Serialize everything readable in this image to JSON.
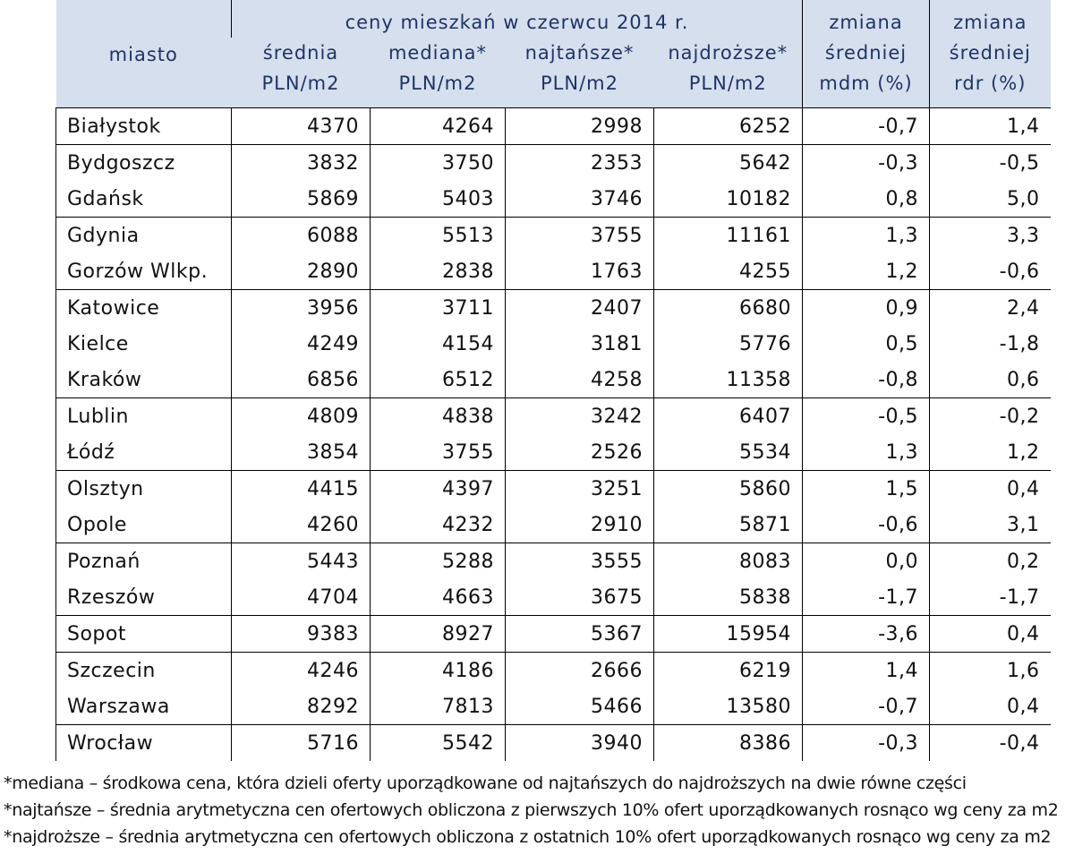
{
  "header": {
    "city_label": "miasto",
    "group_label": "ceny mieszkań w czerwcu 2014 r.",
    "columns": [
      {
        "line1": "średnia",
        "line2": "PLN/m2"
      },
      {
        "line1": "mediana*",
        "line2": "PLN/m2"
      },
      {
        "line1": "najtańsze*",
        "line2": "PLN/m2"
      },
      {
        "line1": "najdroższe*",
        "line2": "PLN/m2"
      }
    ],
    "change_mdm": {
      "line1": "zmiana",
      "line2": "średniej",
      "line3": "mdm (%)"
    },
    "change_rdr": {
      "line1": "zmiana",
      "line2": "średniej",
      "line3": "rdr (%)"
    }
  },
  "rows": [
    {
      "city": "Białystok",
      "srednia": "4370",
      "mediana": "4264",
      "najtansze": "2998",
      "najdrozsze": "6252",
      "mdm": "-0,7",
      "rdr": "1,4"
    },
    {
      "city": "Bydgoszcz",
      "srednia": "3832",
      "mediana": "3750",
      "najtansze": "2353",
      "najdrozsze": "5642",
      "mdm": "-0,3",
      "rdr": "-0,5"
    },
    {
      "city": "Gdańsk",
      "srednia": "5869",
      "mediana": "5403",
      "najtansze": "3746",
      "najdrozsze": "10182",
      "mdm": "0,8",
      "rdr": "5,0"
    },
    {
      "city": "Gdynia",
      "srednia": "6088",
      "mediana": "5513",
      "najtansze": "3755",
      "najdrozsze": "11161",
      "mdm": "1,3",
      "rdr": "3,3"
    },
    {
      "city": "Gorzów Wlkp.",
      "srednia": "2890",
      "mediana": "2838",
      "najtansze": "1763",
      "najdrozsze": "4255",
      "mdm": "1,2",
      "rdr": "-0,6"
    },
    {
      "city": "Katowice",
      "srednia": "3956",
      "mediana": "3711",
      "najtansze": "2407",
      "najdrozsze": "6680",
      "mdm": "0,9",
      "rdr": "2,4"
    },
    {
      "city": "Kielce",
      "srednia": "4249",
      "mediana": "4154",
      "najtansze": "3181",
      "najdrozsze": "5776",
      "mdm": "0,5",
      "rdr": "-1,8"
    },
    {
      "city": "Kraków",
      "srednia": "6856",
      "mediana": "6512",
      "najtansze": "4258",
      "najdrozsze": "11358",
      "mdm": "-0,8",
      "rdr": "0,6"
    },
    {
      "city": "Lublin",
      "srednia": "4809",
      "mediana": "4838",
      "najtansze": "3242",
      "najdrozsze": "6407",
      "mdm": "-0,5",
      "rdr": "-0,2"
    },
    {
      "city": "Łódź",
      "srednia": "3854",
      "mediana": "3755",
      "najtansze": "2526",
      "najdrozsze": "5534",
      "mdm": "1,3",
      "rdr": "1,2"
    },
    {
      "city": "Olsztyn",
      "srednia": "4415",
      "mediana": "4397",
      "najtansze": "3251",
      "najdrozsze": "5860",
      "mdm": "1,5",
      "rdr": "0,4"
    },
    {
      "city": "Opole",
      "srednia": "4260",
      "mediana": "4232",
      "najtansze": "2910",
      "najdrozsze": "5871",
      "mdm": "-0,6",
      "rdr": "3,1"
    },
    {
      "city": "Poznań",
      "srednia": "5443",
      "mediana": "5288",
      "najtansze": "3555",
      "najdrozsze": "8083",
      "mdm": "0,0",
      "rdr": "0,2"
    },
    {
      "city": "Rzeszów",
      "srednia": "4704",
      "mediana": "4663",
      "najtansze": "3675",
      "najdrozsze": "5838",
      "mdm": "-1,7",
      "rdr": "-1,7"
    },
    {
      "city": "Sopot",
      "srednia": "9383",
      "mediana": "8927",
      "najtansze": "5367",
      "najdrozsze": "15954",
      "mdm": "-3,6",
      "rdr": "0,4"
    },
    {
      "city": "Szczecin",
      "srednia": "4246",
      "mediana": "4186",
      "najtansze": "2666",
      "najdrozsze": "6219",
      "mdm": "1,4",
      "rdr": "1,6"
    },
    {
      "city": "Warszawa",
      "srednia": "8292",
      "mediana": "7813",
      "najtansze": "5466",
      "najdrozsze": "13580",
      "mdm": "-0,7",
      "rdr": "0,4"
    },
    {
      "city": "Wrocław",
      "srednia": "5716",
      "mediana": "5542",
      "najtansze": "3940",
      "najdrozsze": "8386",
      "mdm": "-0,3",
      "rdr": "-0,4"
    }
  ],
  "notes": [
    "*mediana – środkowa cena, która dzieli oferty uporządkowane od najtańszych do najdroższych na dwie równe części",
    "*najtańsze – średnia arytmetyczna cen ofertowych obliczona z pierwszych 10% ofert uporządkowanych rosnąco wg ceny za m2",
    "*najdroższe – średnia arytmetyczna cen ofertowych obliczona z ostatnich 10% ofert uporządkowanych rosnąco wg ceny za m2"
  ]
}
